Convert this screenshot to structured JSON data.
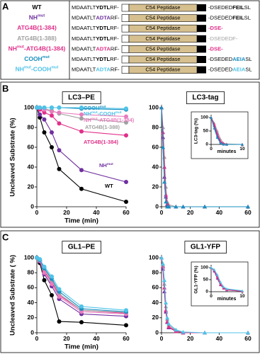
{
  "panel_labels": [
    "A",
    "B",
    "C"
  ],
  "constructs": [
    {
      "label": [
        {
          "text": "WT"
        }
      ],
      "color": "#000000",
      "domain": "C54 Peptidase",
      "n_term": [
        {
          "text": "MDAATLT"
        },
        {
          "text": "YDTL",
          "bold": true
        },
        {
          "text": "RF-"
        }
      ],
      "c_term": [
        {
          "text": "-DSEDED"
        },
        {
          "text": "FEIL",
          "bold": true
        },
        {
          "text": "SL"
        }
      ]
    },
    {
      "label": [
        {
          "text": "NH"
        },
        {
          "text": "mut",
          "sup": true
        }
      ],
      "color": "#7030a0",
      "domain": "C54 Peptidase",
      "n_term": [
        {
          "text": "MDAATLT"
        },
        {
          "text": "ADTA",
          "bold": true,
          "color": "#7030a0"
        },
        {
          "text": "RF-"
        }
      ],
      "c_term": [
        {
          "text": "-DSEDED"
        },
        {
          "text": "FEIL",
          "bold": true
        },
        {
          "text": "SL"
        }
      ]
    },
    {
      "label": [
        {
          "text": "ATG4B(1-384)"
        }
      ],
      "color": "#e0308a",
      "domain": "C54 Peptidase",
      "n_term": [
        {
          "text": "MDAATLT"
        },
        {
          "text": "YDTL",
          "bold": true
        },
        {
          "text": "RF-"
        }
      ],
      "c_term": [
        {
          "text": "-DSE-",
          "bold": true,
          "color": "#e0308a"
        }
      ]
    },
    {
      "label": [
        {
          "text": "ATG4B(1-388)"
        }
      ],
      "color": "#a0a0a0",
      "domain": "C54 Peptidase",
      "n_term": [
        {
          "text": "MDAATLT"
        },
        {
          "text": "YDTL",
          "bold": true
        },
        {
          "text": "RF-"
        }
      ],
      "c_term": [
        {
          "text": "-DSEDEDF-",
          "color": "#a0a0a0"
        }
      ]
    },
    {
      "label": [
        {
          "text": "NH"
        },
        {
          "text": "mut",
          "sup": true
        },
        {
          "text": "-ATG4B(1-384)"
        }
      ],
      "color": "#e0308a",
      "domain": "C54 Peptidase",
      "n_term": [
        {
          "text": "MDAATLT"
        },
        {
          "text": "ADTA",
          "bold": true,
          "color": "#e0308a"
        },
        {
          "text": "RF-"
        }
      ],
      "c_term": [
        {
          "text": "-DSE-",
          "bold": true,
          "color": "#e0308a"
        }
      ]
    },
    {
      "label": [
        {
          "text": "COOH"
        },
        {
          "text": "mut",
          "sup": true
        }
      ],
      "color": "#1a8fc0",
      "domain": "C54 Peptidase",
      "n_term": [
        {
          "text": "MDAATLT"
        },
        {
          "text": "YDTL",
          "bold": true
        },
        {
          "text": "RF-"
        }
      ],
      "c_term": [
        {
          "text": "-DSEDED"
        },
        {
          "text": "AEIA",
          "bold": true,
          "color": "#1a8fc0"
        },
        {
          "text": "SL"
        }
      ]
    },
    {
      "label": [
        {
          "text": "NH"
        },
        {
          "text": "mut",
          "sup": true
        },
        {
          "text": "-COOH"
        },
        {
          "text": "mut",
          "sup": true
        }
      ],
      "color": "#4fc3e8",
      "domain": "C54 Peptidase",
      "n_term": [
        {
          "text": "MDAATLT"
        },
        {
          "text": "ADTA",
          "bold": true,
          "color": "#4fc3e8"
        },
        {
          "text": "RF-"
        }
      ],
      "c_term": [
        {
          "text": "-DSEDED"
        },
        {
          "text": "AEIA",
          "bold": true,
          "color": "#4fc3e8"
        },
        {
          "text": "SL"
        }
      ]
    }
  ],
  "chart_data": [
    {
      "type": "line",
      "title": "LC3–PE",
      "xlabel": "Time (min)",
      "ylabel": "Uncleaved Substrate (%)",
      "marker": "circle",
      "xlim": [
        0,
        60
      ],
      "xticks": [
        0,
        20,
        40,
        60
      ],
      "ylim": [
        0,
        100
      ],
      "yticks": [
        0,
        20,
        40,
        60,
        80,
        100
      ],
      "x": [
        0,
        2,
        5,
        10,
        15,
        30,
        60
      ],
      "series": [
        {
          "label": [
            {
              "text": "WT"
            }
          ],
          "color": "#000000",
          "values": [
            100,
            90,
            75,
            60,
            38,
            18,
            5
          ]
        },
        {
          "label": [
            {
              "text": "NH"
            },
            {
              "text": "mut",
              "sup": true
            }
          ],
          "color": "#7030a0",
          "values": [
            100,
            93,
            88,
            75,
            57,
            37,
            25
          ]
        },
        {
          "label": [
            {
              "text": "ATG4B(1-384)"
            }
          ],
          "color": "#e0308a",
          "values": [
            100,
            98,
            95,
            92,
            84,
            76,
            72
          ]
        },
        {
          "label": [
            {
              "text": "ATG4B(1-388)"
            }
          ],
          "color": "#a0a0a0",
          "values": [
            100,
            100,
            99,
            97,
            94,
            89,
            85
          ]
        },
        {
          "label": [
            {
              "text": "NH"
            },
            {
              "text": "mut",
              "sup": true
            },
            {
              "text": "-ATG4B(1-384)"
            }
          ],
          "color": "#e87bbd",
          "values": [
            100,
            100,
            98,
            96,
            95,
            93,
            91
          ]
        },
        {
          "label": [
            {
              "text": "COOH"
            },
            {
              "text": "mut",
              "sup": true
            }
          ],
          "color": "#1a8fc0",
          "values": [
            100,
            100,
            100,
            100,
            100,
            99,
            98
          ]
        },
        {
          "label": [
            {
              "text": "NH"
            },
            {
              "text": "mut",
              "sup": true
            },
            {
              "text": "-COOH"
            },
            {
              "text": "mut",
              "sup": true
            }
          ],
          "color": "#4fc3e8",
          "values": [
            100,
            100,
            100,
            100,
            100,
            100,
            99
          ]
        }
      ]
    },
    {
      "type": "line",
      "title": "LC3-tag",
      "marker": "triangle",
      "xlim": [
        0,
        60
      ],
      "xticks": [
        0,
        20,
        40,
        60
      ],
      "ylim": [
        0,
        100
      ],
      "yticks": [
        0,
        20,
        40,
        60,
        80,
        100
      ],
      "x": [
        0,
        1,
        2,
        3,
        4,
        5,
        10,
        15,
        30,
        60
      ],
      "series": [
        {
          "color": "#a0a0a0",
          "values": [
            100,
            80,
            50,
            20,
            5,
            2,
            0,
            0,
            0,
            0
          ]
        },
        {
          "color": "#7030a0",
          "values": [
            100,
            70,
            30,
            10,
            2,
            0,
            0,
            0,
            0,
            0
          ]
        },
        {
          "color": "#e0308a",
          "values": [
            100,
            75,
            40,
            12,
            3,
            0,
            0,
            0,
            0,
            0
          ]
        },
        {
          "color": "#1a8fc0",
          "values": [
            100,
            60,
            25,
            5,
            0,
            0,
            0,
            0,
            0,
            0
          ]
        }
      ]
    },
    {
      "type": "line",
      "inset": true,
      "xlabel": "minutes",
      "ylabel": "LC3-tag (%)",
      "marker": "triangle",
      "xlim": [
        0,
        10
      ],
      "xticks": [
        0,
        10
      ],
      "ylim": [
        0,
        100
      ],
      "yticks": [
        0,
        50,
        100
      ],
      "x": [
        0,
        1,
        2,
        3,
        4,
        5,
        10
      ],
      "series": [
        {
          "color": "#a0a0a0",
          "values": [
            100,
            80,
            50,
            20,
            5,
            2,
            0
          ]
        },
        {
          "color": "#7030a0",
          "values": [
            100,
            70,
            30,
            10,
            2,
            0,
            0
          ]
        },
        {
          "color": "#e0308a",
          "values": [
            100,
            75,
            40,
            12,
            3,
            0,
            0
          ]
        },
        {
          "color": "#1a8fc0",
          "values": [
            100,
            60,
            25,
            5,
            0,
            0,
            0
          ]
        }
      ]
    },
    {
      "type": "line",
      "title": "GL1–PE",
      "xlabel": "Time (min)",
      "ylabel": "Uncleaved Substrate ( %)",
      "marker": "circle",
      "xlim": [
        0,
        60
      ],
      "xticks": [
        0,
        20,
        40,
        60
      ],
      "ylim": [
        0,
        100
      ],
      "yticks": [
        0,
        20,
        40,
        60,
        80,
        100
      ],
      "x": [
        0,
        2,
        5,
        10,
        15,
        30,
        60
      ],
      "series": [
        {
          "color": "#000000",
          "values": [
            100,
            93,
            70,
            50,
            15,
            14,
            10
          ]
        },
        {
          "color": "#7030a0",
          "values": [
            100,
            95,
            78,
            62,
            45,
            25,
            22
          ]
        },
        {
          "color": "#e0308a",
          "values": [
            100,
            96,
            82,
            68,
            50,
            30,
            26
          ]
        },
        {
          "color": "#a0a0a0",
          "values": [
            100,
            97,
            85,
            70,
            52,
            30,
            27
          ]
        },
        {
          "color": "#e87bbd",
          "values": [
            100,
            96,
            80,
            65,
            48,
            28,
            25
          ]
        },
        {
          "color": "#1a8fc0",
          "values": [
            100,
            97,
            86,
            72,
            55,
            32,
            28
          ]
        },
        {
          "color": "#4fc3e8",
          "values": [
            100,
            98,
            88,
            75,
            58,
            35,
            30
          ]
        }
      ]
    },
    {
      "type": "line",
      "title": "GL1-YFP",
      "marker": "triangle",
      "xlim": [
        0,
        60
      ],
      "xticks": [
        0,
        20,
        40,
        60
      ],
      "ylim": [
        0,
        100
      ],
      "yticks": [
        0,
        20,
        40,
        60,
        80,
        100
      ],
      "x": [
        0,
        1,
        2,
        3,
        4,
        5,
        10,
        15,
        30,
        60
      ],
      "series": [
        {
          "color": "#a0a0a0",
          "values": [
            100,
            90,
            65,
            35,
            18,
            10,
            3,
            0,
            0,
            0
          ]
        },
        {
          "color": "#7030a0",
          "values": [
            100,
            85,
            55,
            28,
            14,
            7,
            2,
            0,
            0,
            0
          ]
        },
        {
          "color": "#e0308a",
          "values": [
            100,
            88,
            60,
            30,
            15,
            8,
            2,
            0,
            0,
            0
          ]
        },
        {
          "color": "#4fc3e8",
          "values": [
            100,
            92,
            70,
            40,
            20,
            12,
            4,
            1,
            0,
            0
          ]
        }
      ]
    },
    {
      "type": "line",
      "inset": true,
      "xlabel": "minutes",
      "ylabel": "GL1-YFP (%)",
      "marker": "triangle",
      "xlim": [
        0,
        10
      ],
      "xticks": [
        0,
        10
      ],
      "ylim": [
        0,
        100
      ],
      "yticks": [
        0,
        50,
        100
      ],
      "x": [
        0,
        1,
        2,
        3,
        4,
        5,
        10
      ],
      "series": [
        {
          "color": "#a0a0a0",
          "values": [
            100,
            90,
            65,
            35,
            18,
            10,
            3
          ]
        },
        {
          "color": "#7030a0",
          "values": [
            100,
            85,
            55,
            28,
            14,
            7,
            2
          ]
        },
        {
          "color": "#e0308a",
          "values": [
            100,
            88,
            60,
            30,
            15,
            8,
            2
          ]
        },
        {
          "color": "#4fc3e8",
          "values": [
            100,
            92,
            70,
            40,
            20,
            12,
            4
          ]
        }
      ]
    }
  ]
}
